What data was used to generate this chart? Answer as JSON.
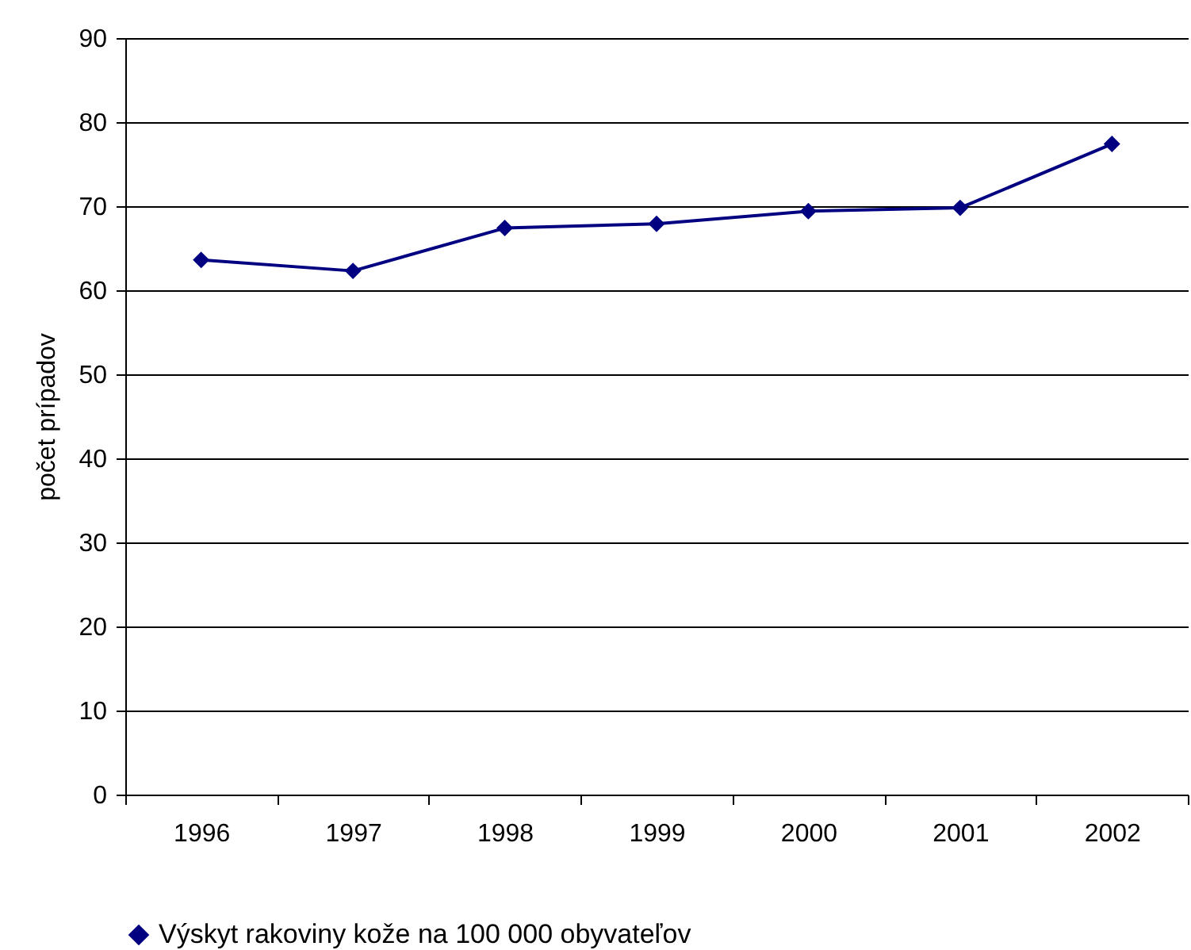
{
  "chart_data": {
    "type": "line",
    "ylabel": "počet prípadov",
    "categories": [
      "1996",
      "1997",
      "1998",
      "1999",
      "2000",
      "2001",
      "2002"
    ],
    "series": [
      {
        "name": "Výskyt rakoviny kože na 100 000 obyvateľov",
        "color": "#000080",
        "values": [
          63.6,
          62.3,
          67.4,
          67.9,
          69.4,
          69.8,
          77.4
        ]
      }
    ],
    "ylim": [
      0,
      90
    ],
    "yticks": [
      0,
      10,
      20,
      30,
      40,
      50,
      60,
      70,
      80,
      90
    ],
    "grid": "y",
    "legend": "bottom",
    "marker": "diamond",
    "line_style": "solid"
  }
}
